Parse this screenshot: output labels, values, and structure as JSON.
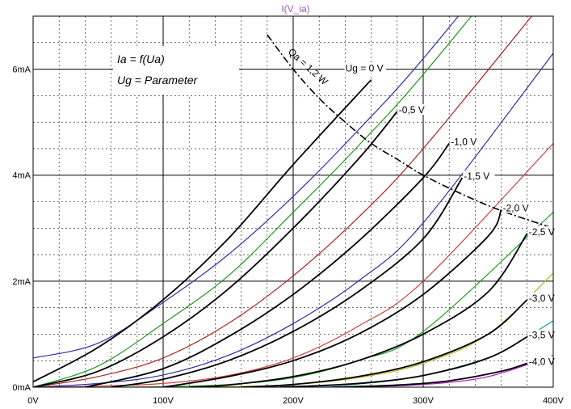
{
  "chart_data": {
    "type": "line",
    "title": "I(V_ia)",
    "xlabel": "",
    "ylabel": "",
    "xlim": [
      0,
      400
    ],
    "ylim": [
      0,
      7
    ],
    "grid": true,
    "x_ticks": [
      {
        "value": 0,
        "label": "0V"
      },
      {
        "value": 100,
        "label": "100V"
      },
      {
        "value": 200,
        "label": "200V"
      },
      {
        "value": 300,
        "label": "300V"
      },
      {
        "value": 400,
        "label": "400V"
      }
    ],
    "y_ticks": [
      {
        "value": 0,
        "label": "0mA"
      },
      {
        "value": 2,
        "label": "2mA"
      },
      {
        "value": 4,
        "label": "4mA"
      },
      {
        "value": 6,
        "label": "6mA"
      }
    ],
    "annotations": {
      "formula1": "Ia = f(Ua)",
      "formula2": "Ug = Parameter",
      "power_limit": "Qa = 1,2 W"
    },
    "series": [
      {
        "grid_v": 0,
        "label": "Ug = 0 V",
        "color": "#2e2ea8",
        "x": [
          0,
          50,
          100,
          150,
          200,
          250,
          300,
          400
        ],
        "y": [
          0.55,
          0.83,
          1.6,
          2.5,
          3.6,
          4.85,
          6.2,
          9.2
        ]
      },
      {
        "grid_v": -0.5,
        "label": "-0,5 V",
        "color": "#1a9a1a",
        "x": [
          0,
          50,
          100,
          150,
          200,
          250,
          300,
          400
        ],
        "y": [
          0.0,
          0.4,
          1.2,
          2.1,
          3.3,
          4.55,
          5.9,
          8.9
        ]
      },
      {
        "grid_v": -1.0,
        "label": "-1,0 V",
        "color": "#b02020",
        "x": [
          0,
          50,
          100,
          150,
          200,
          250,
          300,
          400
        ],
        "y": [
          0.0,
          0.2,
          0.55,
          1.2,
          2.1,
          3.2,
          4.5,
          7.5
        ]
      },
      {
        "grid_v": -1.5,
        "label": "-1,5 V",
        "color": "#2e2ea8",
        "x": [
          0,
          50,
          100,
          150,
          200,
          250,
          300,
          400
        ],
        "y": [
          0.0,
          0.07,
          0.23,
          0.6,
          1.2,
          2.0,
          3.1,
          6.3
        ]
      },
      {
        "grid_v": -2.0,
        "label": "-2,0 V",
        "color": "#d04040",
        "x": [
          0,
          50,
          100,
          150,
          200,
          250,
          300,
          400
        ],
        "y": [
          0.0,
          0.02,
          0.07,
          0.22,
          0.55,
          1.15,
          2.0,
          4.6
        ]
      },
      {
        "grid_v": -2.5,
        "label": "-2,5 V",
        "color": "#20a020",
        "x": [
          0,
          50,
          100,
          150,
          200,
          250,
          300,
          400
        ],
        "y": [
          0.0,
          0.0,
          0.01,
          0.05,
          0.18,
          0.5,
          1.05,
          3.3
        ]
      },
      {
        "grid_v": -3.0,
        "label": "-3,0 V",
        "color": "#b8b020",
        "x": [
          100,
          150,
          200,
          250,
          300,
          350,
          400
        ],
        "y": [
          0.0,
          0.01,
          0.05,
          0.18,
          0.45,
          1.0,
          2.15
        ]
      },
      {
        "grid_v": -3.5,
        "label": "-3,5 V",
        "color": "#20a0b0",
        "x": [
          150,
          200,
          250,
          300,
          350,
          400
        ],
        "y": [
          0.0,
          0.01,
          0.06,
          0.22,
          0.55,
          1.25
        ]
      },
      {
        "grid_v": -4.0,
        "label": "-4,0 V",
        "color": "#a020c0",
        "x": [
          200,
          250,
          300,
          350,
          400
        ],
        "y": [
          0.0,
          0.01,
          0.05,
          0.2,
          0.6
        ]
      }
    ],
    "reference_curves": [
      {
        "grid_v": 0,
        "x": [
          0,
          50,
          100,
          150,
          200,
          260
        ],
        "y": [
          0.1,
          0.75,
          1.65,
          2.8,
          4.2,
          5.8
        ]
      },
      {
        "grid_v": -0.5,
        "x": [
          0,
          50,
          100,
          150,
          200,
          250,
          280
        ],
        "y": [
          0.0,
          0.3,
          0.95,
          1.85,
          3.0,
          4.3,
          5.2
        ]
      },
      {
        "grid_v": -1.0,
        "x": [
          40,
          100,
          150,
          200,
          250,
          300,
          320
        ],
        "y": [
          0.0,
          0.35,
          0.95,
          1.75,
          2.75,
          3.95,
          4.6
        ]
      },
      {
        "grid_v": -1.5,
        "x": [
          60,
          100,
          150,
          200,
          250,
          300,
          330
        ],
        "y": [
          0.0,
          0.15,
          0.5,
          1.05,
          1.8,
          2.8,
          3.95
        ]
      },
      {
        "grid_v": -2.0,
        "x": [
          100,
          150,
          200,
          250,
          300,
          350,
          360
        ],
        "y": [
          0.0,
          0.2,
          0.5,
          1.0,
          1.75,
          2.85,
          3.35
        ]
      },
      {
        "grid_v": -2.5,
        "x": [
          120,
          150,
          200,
          250,
          300,
          350,
          380
        ],
        "y": [
          0.0,
          0.04,
          0.2,
          0.5,
          1.0,
          1.8,
          2.9
        ]
      },
      {
        "grid_v": -3.0,
        "x": [
          160,
          200,
          250,
          300,
          350,
          380
        ],
        "y": [
          0.0,
          0.05,
          0.2,
          0.48,
          1.0,
          1.65
        ]
      },
      {
        "grid_v": -3.5,
        "x": [
          190,
          250,
          300,
          350,
          380
        ],
        "y": [
          0.0,
          0.07,
          0.22,
          0.55,
          0.95
        ]
      },
      {
        "grid_v": -4.0,
        "x": [
          230,
          280,
          320,
          360,
          380
        ],
        "y": [
          0.0,
          0.04,
          0.12,
          0.3,
          0.45
        ]
      }
    ],
    "power_limit_curve": {
      "x": [
        180,
        200,
        220,
        240,
        260,
        280,
        300,
        330,
        360,
        400
      ],
      "y": [
        6.65,
        6.0,
        5.45,
        5.0,
        4.6,
        4.3,
        4.0,
        3.64,
        3.33,
        3.0
      ]
    }
  }
}
